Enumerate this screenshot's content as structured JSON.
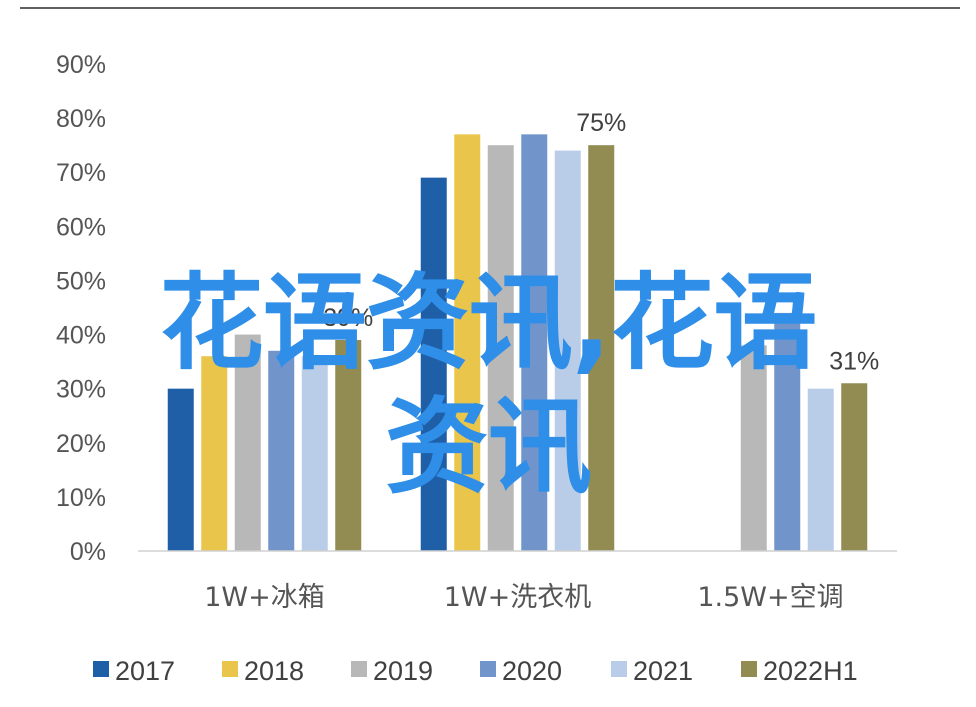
{
  "watermark": {
    "line1": "花语资讯,花语",
    "line2": "资讯",
    "color": "#2f8ee8"
  },
  "chart_data": {
    "type": "bar",
    "categories": [
      "1W+冰箱",
      "1W+洗衣机",
      "1.5W+空调"
    ],
    "series": [
      {
        "name": "2017",
        "color": "#1f5fa8",
        "values": [
          30,
          69,
          null
        ]
      },
      {
        "name": "2018",
        "color": "#eac54c",
        "values": [
          36,
          77,
          null
        ]
      },
      {
        "name": "2019",
        "color": "#b8b8b8",
        "values": [
          40,
          75,
          38
        ]
      },
      {
        "name": "2020",
        "color": "#7195cb",
        "values": [
          37,
          77,
          44
        ]
      },
      {
        "name": "2021",
        "color": "#b9cde8",
        "values": [
          36,
          74,
          30
        ]
      },
      {
        "name": "2022H1",
        "color": "#938c52",
        "values": [
          39,
          75,
          31
        ]
      }
    ],
    "data_labels": [
      {
        "category_index": 0,
        "series_index": 5,
        "text": "39%"
      },
      {
        "category_index": 1,
        "series_index": 5,
        "text": "75%"
      },
      {
        "category_index": 2,
        "series_index": 5,
        "text": "31%"
      }
    ],
    "y_ticks": [
      "0%",
      "10%",
      "20%",
      "30%",
      "40%",
      "50%",
      "60%",
      "70%",
      "80%",
      "90%"
    ],
    "ylim": [
      0,
      90
    ],
    "grid": false,
    "legend_position": "bottom",
    "title": "",
    "xlabel": "",
    "ylabel": ""
  }
}
